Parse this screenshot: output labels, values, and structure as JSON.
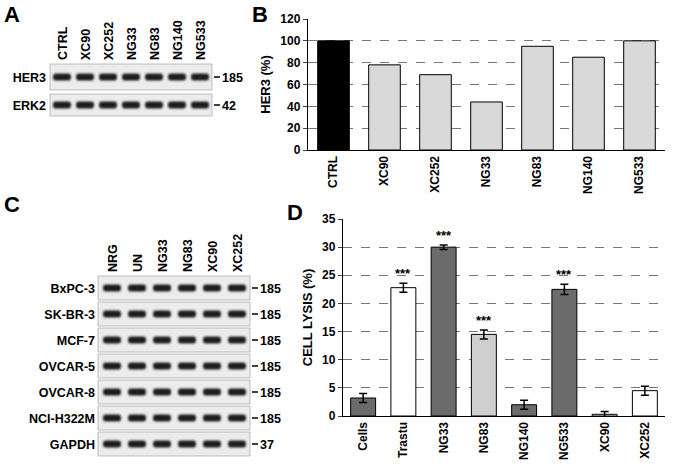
{
  "blots": [
    {
      "panel": "A",
      "lanes": [
        "CTRL",
        "XC90",
        "XC252",
        "NG33",
        "NG83",
        "NG140",
        "NG533"
      ],
      "rows": [
        {
          "name": "HER3",
          "kda": 185
        },
        {
          "name": "ERK2",
          "kda": 42
        }
      ]
    },
    {
      "panel": "C",
      "lanes": [
        "NRG",
        "UN",
        "NG33",
        "NG83",
        "XC90",
        "XC252"
      ],
      "rows": [
        {
          "name": "BxPC-3",
          "kda": 185
        },
        {
          "name": "SK-BR-3",
          "kda": 185
        },
        {
          "name": "MCF-7",
          "kda": 185
        },
        {
          "name": "OVCAR-5",
          "kda": 185
        },
        {
          "name": "OVCAR-8",
          "kda": 185
        },
        {
          "name": "NCI-H322M",
          "kda": 185
        },
        {
          "name": "GAPDH",
          "kda": 37
        }
      ]
    }
  ],
  "chart_data": [
    {
      "panel": "B",
      "type": "bar",
      "y_label": "HER3 (%)",
      "categories": [
        "CTRL",
        "XC90",
        "XC252",
        "NG33",
        "NG83",
        "NG140",
        "NG533"
      ],
      "values": [
        100,
        78,
        69,
        44,
        95,
        85,
        100
      ],
      "colors": [
        "#000000",
        "#d9d9d9",
        "#d9d9d9",
        "#d9d9d9",
        "#d9d9d9",
        "#d9d9d9",
        "#d9d9d9"
      ],
      "ylim": [
        0,
        120
      ],
      "yticks": [
        0,
        20,
        40,
        60,
        80,
        100,
        120
      ],
      "grid": true
    },
    {
      "panel": "D",
      "type": "bar",
      "y_label": "CELL LYSIS (%)",
      "categories": [
        "Cells",
        "Trastu",
        "NG33",
        "NG83",
        "NG140",
        "NG533",
        "XC90",
        "XC252"
      ],
      "values": [
        3.2,
        22.8,
        30,
        14.5,
        2,
        22.5,
        0.3,
        4.5
      ],
      "errors": [
        0.8,
        0.8,
        0.4,
        0.8,
        0.8,
        0.9,
        0.5,
        0.8
      ],
      "colors": [
        "#6b6b6b",
        "#ffffff",
        "#6b6b6b",
        "#cfcfcf",
        "#6b6b6b",
        "#6b6b6b",
        "#ffffff",
        "#ffffff"
      ],
      "ylim": [
        0,
        35
      ],
      "yticks": [
        0,
        5,
        10,
        15,
        20,
        25,
        30,
        35
      ],
      "grid": true,
      "annotations": [
        {
          "category": "Trastu",
          "text": "***"
        },
        {
          "category": "NG33",
          "text": "***"
        },
        {
          "category": "NG83",
          "text": "***"
        },
        {
          "category": "NG533",
          "text": "***"
        }
      ]
    }
  ]
}
